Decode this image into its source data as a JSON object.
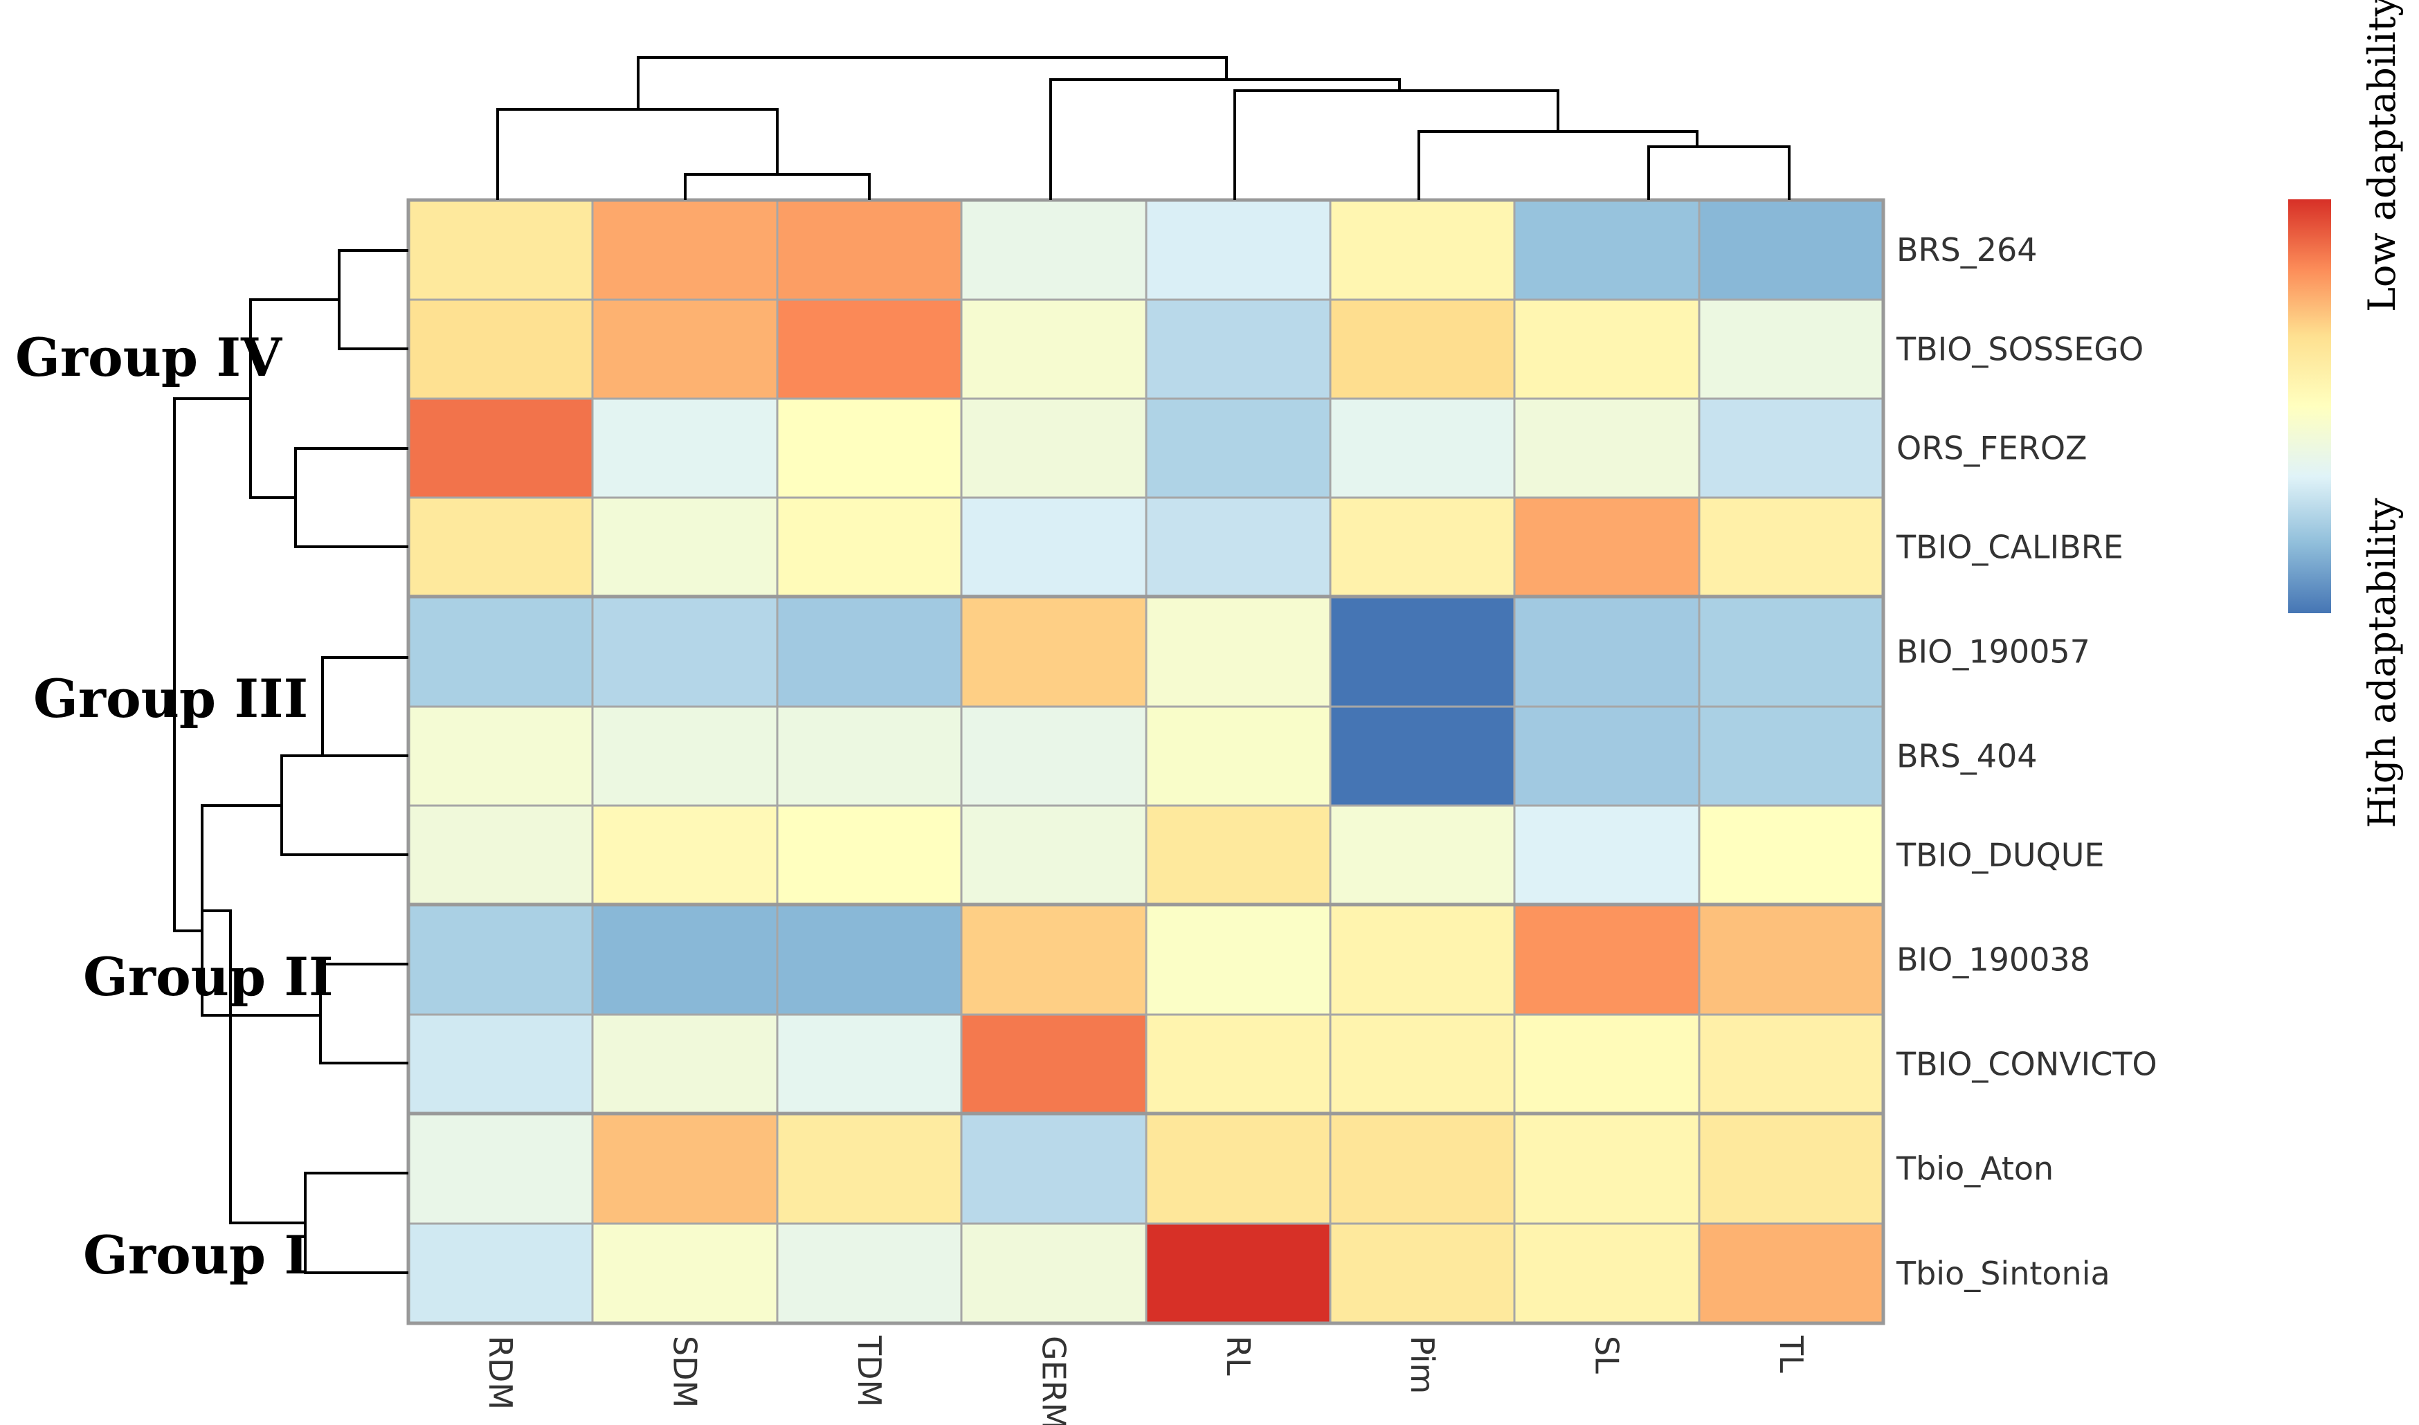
{
  "chart_data": {
    "type": "heatmap",
    "columns": [
      "RDM",
      "SDM",
      "TDM",
      "GERM",
      "RL",
      "Pim",
      "SL",
      "TL"
    ],
    "rows": [
      "BRS_264",
      "TBIO_SOSSEGO",
      "ORS_FEROZ",
      "TBIO_CALIBRE",
      "BIO_190057",
      "BRS_404",
      "TBIO_DUQUE",
      "BIO_190038",
      "TBIO_CONVICTO",
      "Tbio_Aton",
      "Tbio_Sintonia"
    ],
    "values": [
      [
        0.62,
        0.78,
        0.8,
        0.38,
        0.32,
        0.55,
        0.18,
        0.15
      ],
      [
        0.66,
        0.76,
        0.84,
        0.45,
        0.25,
        0.67,
        0.55,
        0.4
      ],
      [
        0.88,
        0.35,
        0.5,
        0.42,
        0.23,
        0.36,
        0.42,
        0.28
      ],
      [
        0.62,
        0.43,
        0.52,
        0.32,
        0.28,
        0.57,
        0.78,
        0.58
      ],
      [
        0.22,
        0.24,
        0.2,
        0.7,
        0.45,
        0.0,
        0.2,
        0.22
      ],
      [
        0.44,
        0.4,
        0.4,
        0.38,
        0.47,
        0.0,
        0.2,
        0.22
      ],
      [
        0.42,
        0.53,
        0.5,
        0.41,
        0.62,
        0.44,
        0.33,
        0.5
      ],
      [
        0.22,
        0.15,
        0.15,
        0.7,
        0.48,
        0.56,
        0.82,
        0.73
      ],
      [
        0.3,
        0.42,
        0.36,
        0.87,
        0.56,
        0.56,
        0.52,
        0.58
      ],
      [
        0.38,
        0.73,
        0.61,
        0.25,
        0.63,
        0.64,
        0.55,
        0.62
      ],
      [
        0.3,
        0.46,
        0.38,
        0.42,
        1.0,
        0.62,
        0.56,
        0.76
      ]
    ],
    "row_groups": [
      {
        "name": "Group IV",
        "rows": [
          0,
          3
        ]
      },
      {
        "name": "Group III",
        "rows": [
          4,
          6
        ]
      },
      {
        "name": "Group II",
        "rows": [
          7,
          8
        ]
      },
      {
        "name": "Group I",
        "rows": [
          9,
          10
        ]
      }
    ],
    "colorscale": {
      "low": "#4575b4",
      "mid": "#ffffbf",
      "high": "#d73027",
      "stops": [
        "#4575b4",
        "#91bfdb",
        "#e0f3f8",
        "#ffffbf",
        "#fee090",
        "#fc8d59",
        "#d73027"
      ]
    },
    "legend": {
      "high_label": "Low adaptability",
      "low_label": "High adaptability",
      "position": "right"
    }
  }
}
